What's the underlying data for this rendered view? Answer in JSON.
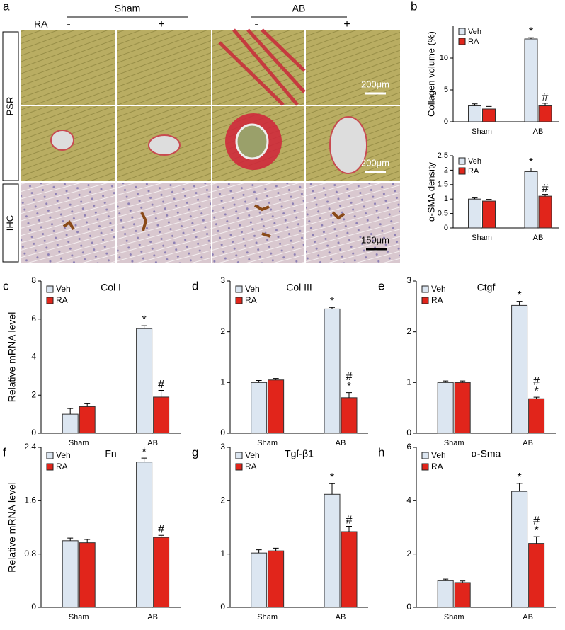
{
  "panel_a": {
    "panel": "a",
    "groups": [
      "Sham",
      "AB"
    ],
    "treatment": "RA",
    "signs": [
      "-",
      "+",
      "-",
      "+"
    ],
    "rows": [
      "PSR",
      "IHC"
    ],
    "scale_bars": [
      "200μm",
      "200μm",
      "150μm"
    ]
  },
  "chart_data": [
    {
      "type": "bar",
      "panel": "b",
      "ylabel": "Collagen volume (%)",
      "categories": [
        "Sham",
        "AB"
      ],
      "ylim": [
        0,
        15
      ],
      "yticks": [
        0,
        5,
        10
      ],
      "series": [
        {
          "name": "Veh",
          "color": "#dce6f1",
          "values": [
            2.5,
            13
          ],
          "errors": [
            0.3,
            0.2
          ],
          "marks": [
            null,
            [
              "*"
            ]
          ]
        },
        {
          "name": "RA",
          "color": "#e1251b",
          "values": [
            2.0,
            2.5
          ],
          "errors": [
            0.4,
            0.4
          ],
          "marks": [
            null,
            [
              "#"
            ]
          ]
        }
      ]
    },
    {
      "type": "bar",
      "ylabel": "α-SMA density",
      "categories": [
        "Sham",
        "AB"
      ],
      "ylim": [
        0,
        2.5
      ],
      "yticks": [
        0,
        0.5,
        1,
        1.5,
        2,
        2.5
      ],
      "series": [
        {
          "name": "Veh",
          "color": "#dce6f1",
          "values": [
            1.0,
            1.95
          ],
          "errors": [
            0.04,
            0.12
          ],
          "marks": [
            null,
            [
              "*"
            ]
          ]
        },
        {
          "name": "RA",
          "color": "#e1251b",
          "values": [
            0.93,
            1.1
          ],
          "errors": [
            0.06,
            0.06
          ],
          "marks": [
            null,
            [
              "#"
            ]
          ]
        }
      ]
    },
    {
      "type": "bar",
      "panel": "c",
      "title": "Col I",
      "ylabel": "Relative mRNA level",
      "categories": [
        "Sham",
        "AB"
      ],
      "ylim": [
        0,
        8
      ],
      "yticks": [
        0,
        2,
        4,
        6,
        8
      ],
      "series": [
        {
          "name": "Veh",
          "color": "#dce6f1",
          "values": [
            1.0,
            5.5
          ],
          "errors": [
            0.3,
            0.15
          ],
          "marks": [
            null,
            [
              "*"
            ]
          ]
        },
        {
          "name": "RA",
          "color": "#e1251b",
          "values": [
            1.4,
            1.9
          ],
          "errors": [
            0.15,
            0.35
          ],
          "marks": [
            null,
            [
              "#"
            ]
          ]
        }
      ]
    },
    {
      "type": "bar",
      "panel": "d",
      "title": "Col III",
      "categories": [
        "Sham",
        "AB"
      ],
      "ylim": [
        0,
        3
      ],
      "yticks": [
        0,
        1,
        2,
        3
      ],
      "series": [
        {
          "name": "Veh",
          "color": "#dce6f1",
          "values": [
            1.0,
            2.45
          ],
          "errors": [
            0.04,
            0.03
          ],
          "marks": [
            null,
            [
              "*"
            ]
          ]
        },
        {
          "name": "RA",
          "color": "#e1251b",
          "values": [
            1.05,
            0.7
          ],
          "errors": [
            0.03,
            0.1
          ],
          "marks": [
            null,
            [
              "#",
              "*"
            ]
          ]
        }
      ]
    },
    {
      "type": "bar",
      "panel": "e",
      "title": "Ctgf",
      "categories": [
        "Sham",
        "AB"
      ],
      "ylim": [
        0,
        3
      ],
      "yticks": [
        0,
        1,
        2,
        3
      ],
      "series": [
        {
          "name": "Veh",
          "color": "#dce6f1",
          "values": [
            1.0,
            2.52
          ],
          "errors": [
            0.03,
            0.08
          ],
          "marks": [
            null,
            [
              "*"
            ]
          ]
        },
        {
          "name": "RA",
          "color": "#e1251b",
          "values": [
            1.0,
            0.68
          ],
          "errors": [
            0.03,
            0.03
          ],
          "marks": [
            null,
            [
              "#",
              "*"
            ]
          ]
        }
      ]
    },
    {
      "type": "bar",
      "panel": "f",
      "title": "Fn",
      "ylabel": "Relative mRNA level",
      "categories": [
        "Sham",
        "AB"
      ],
      "ylim": [
        0,
        2.4
      ],
      "yticks": [
        0,
        0.8,
        1.6,
        2.4
      ],
      "series": [
        {
          "name": "Veh",
          "color": "#dce6f1",
          "values": [
            1.0,
            2.18
          ],
          "errors": [
            0.04,
            0.06
          ],
          "marks": [
            null,
            [
              "*"
            ]
          ]
        },
        {
          "name": "RA",
          "color": "#e1251b",
          "values": [
            0.97,
            1.05
          ],
          "errors": [
            0.05,
            0.03
          ],
          "marks": [
            null,
            [
              "#"
            ]
          ]
        }
      ]
    },
    {
      "type": "bar",
      "panel": "g",
      "title": "Tgf-β1",
      "categories": [
        "Sham",
        "AB"
      ],
      "ylim": [
        0,
        3
      ],
      "yticks": [
        0,
        1,
        2,
        3
      ],
      "series": [
        {
          "name": "Veh",
          "color": "#dce6f1",
          "values": [
            1.02,
            2.12
          ],
          "errors": [
            0.06,
            0.2
          ],
          "marks": [
            null,
            [
              "*"
            ]
          ]
        },
        {
          "name": "RA",
          "color": "#e1251b",
          "values": [
            1.06,
            1.42
          ],
          "errors": [
            0.05,
            0.1
          ],
          "marks": [
            null,
            [
              "#"
            ]
          ]
        }
      ]
    },
    {
      "type": "bar",
      "panel": "h",
      "title": "α-Sma",
      "categories": [
        "Sham",
        "AB"
      ],
      "ylim": [
        0,
        6
      ],
      "yticks": [
        0,
        2,
        4,
        6
      ],
      "series": [
        {
          "name": "Veh",
          "color": "#dce6f1",
          "values": [
            1.0,
            4.35
          ],
          "errors": [
            0.06,
            0.3
          ],
          "marks": [
            null,
            [
              "*"
            ]
          ]
        },
        {
          "name": "RA",
          "color": "#e1251b",
          "values": [
            0.93,
            2.4
          ],
          "errors": [
            0.06,
            0.25
          ],
          "marks": [
            null,
            [
              "#",
              "*"
            ]
          ]
        }
      ]
    }
  ]
}
